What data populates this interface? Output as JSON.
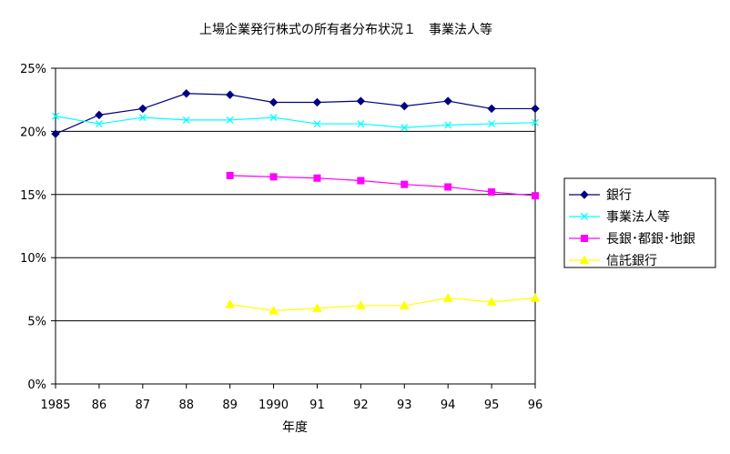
{
  "chart_data": {
    "type": "line",
    "title": "上場企業発行株式の所有者分布状況１　事業法人等",
    "xlabel": "年度",
    "ylabel": "",
    "x": [
      "1985",
      "86",
      "87",
      "88",
      "89",
      "1990",
      "91",
      "92",
      "93",
      "94",
      "95",
      "96"
    ],
    "y_ticks": [
      "0%",
      "5%",
      "10%",
      "15%",
      "20%",
      "25%"
    ],
    "ylim": [
      0,
      25
    ],
    "grid": "horizontal major lines",
    "legend_position": "right",
    "series": [
      {
        "name": "銀行",
        "color": "#000080",
        "marker": "diamond",
        "values": [
          19.8,
          21.3,
          21.8,
          23.0,
          22.9,
          22.3,
          22.3,
          22.4,
          22.0,
          22.4,
          21.8,
          21.8
        ]
      },
      {
        "name": "事業法人等",
        "color": "#00FFFF",
        "marker": "x",
        "values": [
          21.2,
          20.6,
          21.1,
          20.9,
          20.9,
          21.1,
          20.6,
          20.6,
          20.3,
          20.5,
          20.6,
          20.7
        ]
      },
      {
        "name": "長銀･都銀･地銀",
        "color": "#FF00FF",
        "marker": "square",
        "values": [
          null,
          null,
          null,
          null,
          16.5,
          16.4,
          16.3,
          16.1,
          15.8,
          15.6,
          15.2,
          14.9
        ]
      },
      {
        "name": "信託銀行",
        "color": "#FFFF00",
        "marker": "triangle",
        "values": [
          null,
          null,
          null,
          null,
          6.3,
          5.8,
          6.0,
          6.2,
          6.2,
          6.8,
          6.5,
          6.8
        ]
      }
    ]
  }
}
